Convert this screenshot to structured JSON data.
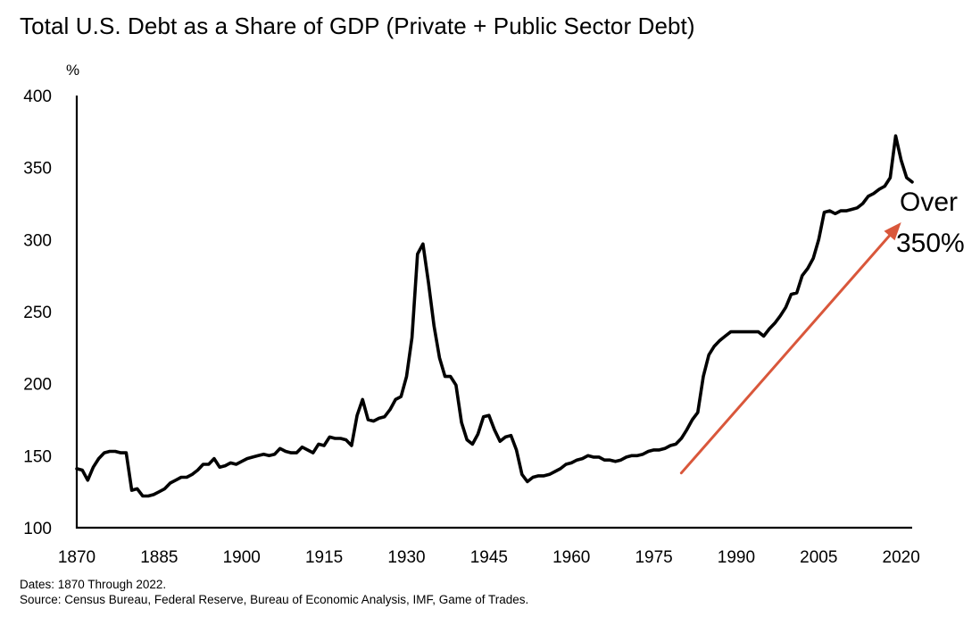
{
  "title": "Total U.S. Debt as a Share of GDP (Private + Public Sector Debt)",
  "footnotes": {
    "dates": "Dates: 1870 Through 2022.",
    "source": "Source: Census Bureau, Federal Reserve, Bureau of Economic Analysis, IMF, Game of Trades."
  },
  "annotation": {
    "line1": "Over",
    "line2": "350%"
  },
  "colors": {
    "line": "#000000",
    "arrow": "#d9573b",
    "axis": "#000000"
  },
  "chart_data": {
    "type": "line",
    "title": "Total U.S. Debt as a Share of GDP (Private + Public Sector Debt)",
    "xlabel": "",
    "ylabel": "%",
    "xlim": [
      1870,
      2022
    ],
    "ylim": [
      100,
      400
    ],
    "xticks": [
      "1870",
      "1885",
      "1900",
      "1915",
      "1930",
      "1945",
      "1960",
      "1975",
      "1990",
      "2005",
      "2020"
    ],
    "yticks": [
      "100",
      "150",
      "200",
      "250",
      "300",
      "350",
      "400"
    ],
    "grid": false,
    "legend": "none",
    "trend_arrow": {
      "from": [
        1980,
        138
      ],
      "to": [
        2020,
        312
      ]
    },
    "series": [
      {
        "x": [
          1870,
          1871,
          1872,
          1873,
          1874,
          1875,
          1876,
          1877,
          1878,
          1879,
          1880,
          1881,
          1882,
          1883,
          1884,
          1885,
          1886,
          1887,
          1888,
          1889,
          1890,
          1891,
          1892,
          1893,
          1894,
          1895,
          1896,
          1897,
          1898,
          1899,
          1900,
          1901,
          1902,
          1903,
          1904,
          1905,
          1906,
          1907,
          1908,
          1909,
          1910,
          1911,
          1912,
          1913,
          1914,
          1915,
          1916,
          1917,
          1918,
          1919,
          1920,
          1921,
          1922,
          1923,
          1924,
          1925,
          1926,
          1927,
          1928,
          1929,
          1930,
          1931,
          1932,
          1933,
          1934,
          1935,
          1936,
          1937,
          1938,
          1939,
          1940,
          1941,
          1942,
          1943,
          1944,
          1945,
          1946,
          1947,
          1948,
          1949,
          1950,
          1951,
          1952,
          1953,
          1954,
          1955,
          1956,
          1957,
          1958,
          1959,
          1960,
          1961,
          1962,
          1963,
          1964,
          1965,
          1966,
          1967,
          1968,
          1969,
          1970,
          1971,
          1972,
          1973,
          1974,
          1975,
          1976,
          1977,
          1978,
          1979,
          1980,
          1981,
          1982,
          1983,
          1984,
          1985,
          1986,
          1987,
          1988,
          1989,
          1990,
          1991,
          1992,
          1993,
          1994,
          1995,
          1996,
          1997,
          1998,
          1999,
          2000,
          2001,
          2002,
          2003,
          2004,
          2005,
          2006,
          2007,
          2008,
          2009,
          2010,
          2011,
          2012,
          2013,
          2014,
          2015,
          2016,
          2017,
          2018,
          2019,
          2020,
          2021,
          2022
        ],
        "values": [
          141,
          140,
          133,
          142,
          148,
          152,
          153,
          153,
          152,
          152,
          126,
          127,
          122,
          122,
          123,
          125,
          127,
          131,
          133,
          135,
          135,
          137,
          140,
          144,
          144,
          148,
          142,
          143,
          145,
          144,
          146,
          148,
          149,
          150,
          151,
          150,
          151,
          155,
          153,
          152,
          152,
          156,
          154,
          152,
          158,
          157,
          163,
          162,
          162,
          161,
          157,
          178,
          189,
          175,
          174,
          176,
          177,
          182,
          189,
          191,
          205,
          232,
          290,
          297,
          270,
          240,
          218,
          205,
          205,
          199,
          173,
          161,
          158,
          165,
          177,
          178,
          168,
          160,
          163,
          164,
          154,
          137,
          132,
          135,
          136,
          136,
          137,
          139,
          141,
          144,
          145,
          147,
          148,
          150,
          149,
          149,
          147,
          147,
          146,
          147,
          149,
          150,
          150,
          151,
          153,
          154,
          154,
          155,
          157,
          158,
          162,
          168,
          175,
          180,
          205,
          220,
          226,
          230,
          233,
          236,
          236,
          236,
          236,
          236,
          236,
          233,
          238,
          242,
          247,
          253,
          262,
          263,
          275,
          280,
          287,
          300,
          319,
          320,
          318,
          320,
          320,
          321,
          322,
          325,
          330,
          332,
          335,
          337,
          343,
          372,
          355,
          343,
          340
        ]
      }
    ]
  }
}
